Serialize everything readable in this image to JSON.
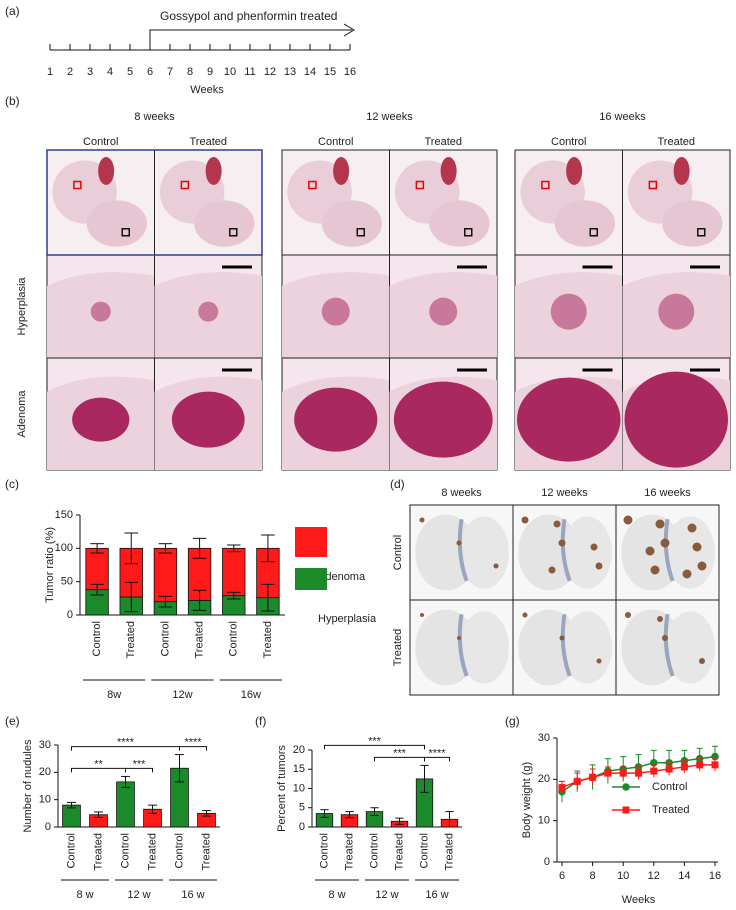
{
  "panel_labels": [
    "(a)",
    "(b)",
    "(c)",
    "(d)",
    "(e)",
    "(f)",
    "(g)"
  ],
  "timeline": {
    "treatment_label": "Gossypol and phenformin treated",
    "ticks": [
      1,
      2,
      3,
      4,
      5,
      6,
      7,
      8,
      9,
      10,
      11,
      12,
      13,
      14,
      15,
      16
    ],
    "axis_label": "Weeks",
    "treatment_start": 6
  },
  "histology": {
    "timepoints": [
      "8 weeks",
      "12 weeks",
      "16 weeks"
    ],
    "groups": [
      "Control",
      "Treated"
    ],
    "rows": [
      "Hyperplasia",
      "Adenoma"
    ]
  },
  "ihc": {
    "timepoints": [
      "8 weeks",
      "12 weeks",
      "16 weeks"
    ],
    "rows": [
      "Control",
      "Treated"
    ]
  },
  "chart_data": [
    {
      "type": "stacked_bar",
      "ylabel": "Tumor ratio (%)",
      "categories": [
        "Control",
        "Treated",
        "Control",
        "Treated",
        "Control",
        "Treated"
      ],
      "groups": [
        "8w",
        "12w",
        "16w"
      ],
      "ylim": [
        0,
        150
      ],
      "yticks": [
        0,
        50,
        100,
        150
      ],
      "series": [
        {
          "name": "Hyperplasia",
          "color": "#1a8a2a",
          "values": [
            38,
            27,
            20,
            22,
            29,
            26
          ],
          "errors": [
            8,
            22,
            8,
            15,
            5,
            20
          ]
        },
        {
          "name": "Adenoma",
          "color": "#ff1a1a",
          "values": [
            62,
            73,
            80,
            78,
            71,
            74
          ],
          "errors": [
            7,
            23,
            7,
            15,
            5,
            20
          ]
        }
      ],
      "legend": "right"
    },
    {
      "type": "bar",
      "ylabel": "Number of nudules",
      "categories": [
        "Control",
        "Treated",
        "Control",
        "Treated",
        "Control",
        "Treated"
      ],
      "groups": [
        "8 w",
        "12 w",
        "16 w"
      ],
      "values": [
        8,
        4.5,
        16.5,
        6.5,
        21.5,
        5
      ],
      "errors": [
        1,
        1,
        2,
        1.5,
        5,
        1
      ],
      "colors": [
        "#1a8a2a",
        "#ff1a1a",
        "#1a8a2a",
        "#ff1a1a",
        "#1a8a2a",
        "#ff1a1a"
      ],
      "ylim": [
        0,
        30
      ],
      "yticks": [
        0,
        10,
        20,
        30
      ],
      "significance": [
        {
          "from": 0,
          "to": 4,
          "label": "****"
        },
        {
          "from": 0,
          "to": 2,
          "label": "**"
        },
        {
          "from": 2,
          "to": 3,
          "label": "***"
        },
        {
          "from": 4,
          "to": 5,
          "label": "****"
        }
      ]
    },
    {
      "type": "bar",
      "ylabel": "Percent of tumors",
      "categories": [
        "Control",
        "Treated",
        "Control",
        "Treated",
        "Control",
        "Treated"
      ],
      "groups": [
        "8 w",
        "12 w",
        "16 w"
      ],
      "values": [
        3.5,
        3.2,
        4,
        1.5,
        12.5,
        2
      ],
      "errors": [
        1,
        0.8,
        1,
        0.8,
        3.5,
        2
      ],
      "colors": [
        "#1a8a2a",
        "#ff1a1a",
        "#1a8a2a",
        "#ff1a1a",
        "#1a8a2a",
        "#ff1a1a"
      ],
      "ylim": [
        0,
        20
      ],
      "yticks": [
        0,
        5,
        10,
        15,
        20
      ],
      "significance": [
        {
          "from": 2,
          "to": 4,
          "label": "***"
        },
        {
          "from": 0,
          "to": 4,
          "label": "***"
        },
        {
          "from": 4,
          "to": 5,
          "label": "****"
        }
      ]
    },
    {
      "type": "line",
      "xlabel": "Weeks",
      "ylabel": "Body weight (g)",
      "x": [
        6,
        7,
        8,
        9,
        10,
        11,
        12,
        13,
        14,
        15,
        16
      ],
      "xlim": [
        6,
        16
      ],
      "xticks": [
        6,
        8,
        10,
        12,
        14,
        16
      ],
      "ylim": [
        0,
        30
      ],
      "yticks": [
        0,
        10,
        20,
        30
      ],
      "series": [
        {
          "name": "Control",
          "color": "#1a8a2a",
          "marker": "circle",
          "values": [
            17,
            19.5,
            20.5,
            22,
            22.5,
            23,
            24,
            24,
            24.5,
            25,
            25.5
          ],
          "errors": [
            2.5,
            2.5,
            3,
            3,
            3,
            3,
            3,
            3,
            2.5,
            2.5,
            2.5
          ]
        },
        {
          "name": "Treated",
          "color": "#ff1a1a",
          "marker": "square",
          "values": [
            18,
            19.5,
            20.5,
            21.5,
            21.5,
            21.5,
            22,
            22.5,
            23,
            23.5,
            23.5
          ],
          "errors": [
            1.5,
            2,
            2,
            1.5,
            1.5,
            1.5,
            1.5,
            1.5,
            1.5,
            1.5,
            1.5
          ]
        }
      ],
      "legend": "inside"
    }
  ]
}
